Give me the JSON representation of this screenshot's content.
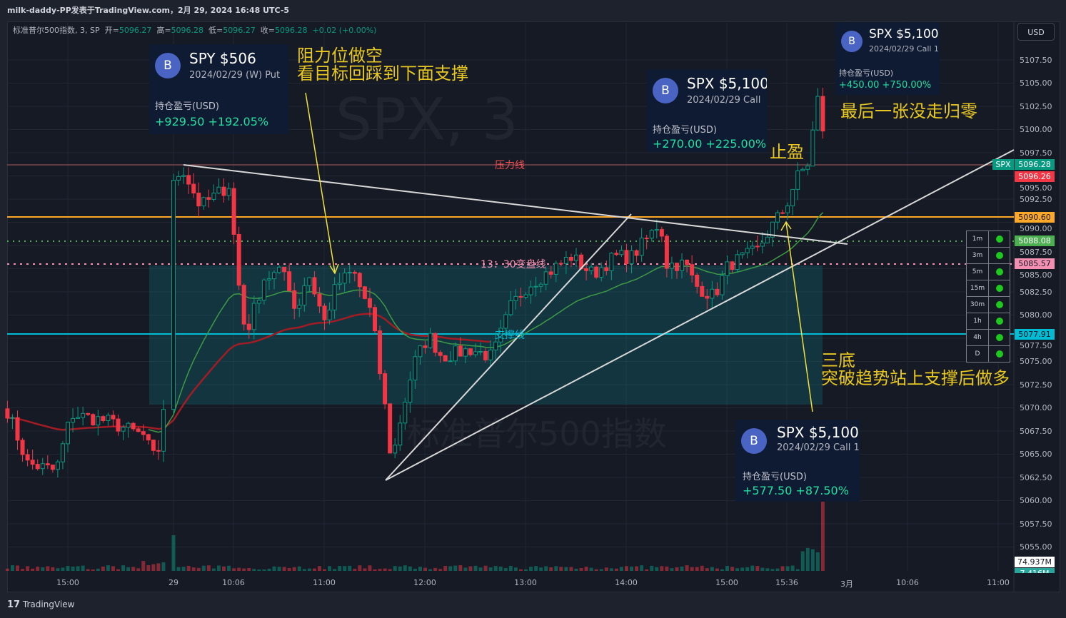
{
  "header": {
    "title": "milk-daddy-PP发表于TradingView.com，2月 29, 2024 16:48 UTC-5"
  },
  "legend": {
    "symbol": "标准普尔500指数, 3, SP",
    "open_label": "开=",
    "open": "5096.27",
    "high_label": "高=",
    "high": "5096.28",
    "low_label": "低=",
    "low": "5096.27",
    "close_label": "收=",
    "close": "5096.28",
    "change": "+0.02",
    "change_pct": "(+0.00%)"
  },
  "currency_button": "USD",
  "watermark": {
    "symbol": "SPX, 3",
    "name": "标准普尔500指数"
  },
  "cards": [
    {
      "badge": "B",
      "title": "SPY $506",
      "subtitle": "2024/02/29 (W) Put",
      "pnl_label": "持仓盈亏(USD)",
      "pnl": "+929.50 +192.05%"
    },
    {
      "badge": "B",
      "title": "SPX $5,100",
      "subtitle": "2024/02/29  Call",
      "pnl_label": "持仓盈亏(USD)",
      "pnl": "+270.00 +225.00%"
    },
    {
      "badge": "B",
      "title": "SPX $5,100",
      "subtitle": "2024/02/29  Call 1",
      "pnl_label": "持仓盈亏(USD)",
      "pnl": "+450.00 +750.00%"
    },
    {
      "badge": "B",
      "title": "SPX $5,100",
      "subtitle": "2024/02/29  Call 1",
      "pnl_label": "持仓盈亏(USD)",
      "pnl": "+577.50 +87.50%"
    }
  ],
  "notes": {
    "short_line1": "阻力位做空",
    "short_line2": "看目标回踩到下面支撑",
    "take_profit": "止盈",
    "last_one": "最后一张没走归零",
    "triple_line1": "三底",
    "triple_line2": "突破趋势站上支撑后做多",
    "resistance": "压力线",
    "pivot": "13：30变盘线",
    "support": "支撑线"
  },
  "price_axis": [
    "5107.50",
    "5105.00",
    "5102.50",
    "5100.00",
    "5097.50",
    "5095.00",
    "5092.50",
    "5090.00",
    "5087.50",
    "5085.00",
    "5082.50",
    "5080.00",
    "5077.50",
    "5075.00",
    "5072.50",
    "5070.00",
    "5067.50",
    "5065.00",
    "5062.50",
    "5060.00",
    "5057.50",
    "5055.00"
  ],
  "price_tags": [
    {
      "name": "symbol",
      "text": "SPX",
      "color": "#089981"
    },
    {
      "name": "last",
      "text": "5096.28",
      "color": "#089981"
    },
    {
      "name": "prev",
      "text": "5096.26",
      "color": "#f23645"
    },
    {
      "name": "orange",
      "text": "5090.60",
      "color": "#ffa726"
    },
    {
      "name": "green",
      "text": "5088.08",
      "color": "#4caf50"
    },
    {
      "name": "pink",
      "text": "5085.57",
      "color": "#f48fb1"
    },
    {
      "name": "cyan",
      "text": "5077.91",
      "color": "#00bcd4"
    }
  ],
  "volume_tags": [
    "74.937M",
    "7.416M"
  ],
  "time_axis": [
    "15:00",
    "29",
    "10:06",
    "11:00",
    "12:00",
    "13:00",
    "14:00",
    "15:00",
    "15:36",
    "3月",
    "10:06",
    "11:00"
  ],
  "mtf_table": [
    {
      "tf": "1m",
      "status": "green"
    },
    {
      "tf": "3m",
      "status": "green"
    },
    {
      "tf": "5m",
      "status": "green"
    },
    {
      "tf": "15m",
      "status": "green"
    },
    {
      "tf": "30m",
      "status": "green"
    },
    {
      "tf": "1h",
      "status": "green"
    },
    {
      "tf": "4h",
      "status": "green"
    },
    {
      "tf": "D",
      "status": "green"
    }
  ],
  "footer": {
    "brand": "TradingView"
  },
  "colors": {
    "up": "#089981",
    "down": "#f23645",
    "annotation": "#e8c820",
    "zone": "#0e7c86"
  },
  "chart_data": {
    "type": "candlestick",
    "interval": "3m",
    "horizontal_levels": [
      5096.28,
      5090.6,
      5088.08,
      5085.57,
      5077.91
    ],
    "ylim": [
      5053.5,
      5109
    ],
    "close_path": [
      [
        "02-28",
        "14:24",
        5069.7
      ],
      [
        "02-28",
        "14:36",
        5064.0
      ],
      [
        "02-28",
        "14:53",
        5063.2
      ],
      [
        "02-28",
        "15:02",
        5069.3
      ],
      [
        "02-28",
        "15:23",
        5068.6
      ],
      [
        "02-28",
        "15:45",
        5067.0
      ],
      [
        "02-28",
        "15:53",
        5064.0
      ],
      [
        "02-28",
        "15:57",
        5070.1
      ],
      [
        "02-29",
        "09:30",
        5094.0
      ],
      [
        "02-29",
        "09:35",
        5096.0
      ],
      [
        "02-29",
        "09:46",
        5091.7
      ],
      [
        "02-29",
        "10:03",
        5094.0
      ],
      [
        "02-29",
        "10:09",
        5083.2
      ],
      [
        "02-29",
        "10:13",
        5077.8
      ],
      [
        "02-29",
        "10:24",
        5084.0
      ],
      [
        "02-29",
        "10:37",
        5084.7
      ],
      [
        "02-29",
        "10:43",
        5080.1
      ],
      [
        "02-29",
        "10:50",
        5084.7
      ],
      [
        "02-29",
        "11:00",
        5079.3
      ],
      [
        "02-29",
        "11:07",
        5083.2
      ],
      [
        "02-29",
        "11:17",
        5084.7
      ],
      [
        "02-29",
        "11:28",
        5080.1
      ],
      [
        "02-29",
        "11:36",
        5070.1
      ],
      [
        "02-29",
        "11:40",
        5064.0
      ],
      [
        "02-29",
        "11:45",
        5068.6
      ],
      [
        "02-29",
        "11:53",
        5074.7
      ],
      [
        "02-29",
        "12:02",
        5077.8
      ],
      [
        "02-29",
        "12:10",
        5075.5
      ],
      [
        "02-29",
        "12:27",
        5076.3
      ],
      [
        "02-29",
        "12:40",
        5075.5
      ],
      [
        "02-29",
        "12:51",
        5080.9
      ],
      [
        "02-29",
        "13:01",
        5083.2
      ],
      [
        "02-29",
        "13:14",
        5084.7
      ],
      [
        "02-29",
        "13:27",
        5086.3
      ],
      [
        "02-29",
        "13:40",
        5084.4
      ],
      [
        "02-29",
        "13:53",
        5086.3
      ],
      [
        "02-29",
        "14:03",
        5086.3
      ],
      [
        "02-29",
        "14:14",
        5088.6
      ],
      [
        "02-29",
        "14:20",
        5090.1
      ],
      [
        "02-29",
        "14:24",
        5085.5
      ],
      [
        "02-29",
        "14:35",
        5085.5
      ],
      [
        "02-29",
        "14:41",
        5083.2
      ],
      [
        "02-29",
        "14:52",
        5082.0
      ],
      [
        "02-29",
        "15:01",
        5085.5
      ],
      [
        "02-29",
        "15:11",
        5086.3
      ],
      [
        "02-29",
        "15:18",
        5087.0
      ],
      [
        "02-29",
        "15:26",
        5089.4
      ],
      [
        "02-29",
        "15:35",
        5091.7
      ],
      [
        "02-29",
        "15:41",
        5094.7
      ],
      [
        "02-29",
        "15:48",
        5096.3
      ],
      [
        "02-29",
        "15:54",
        5103.2
      ],
      [
        "02-29",
        "15:57",
        5100.1
      ],
      [
        "02-29",
        "15:59",
        5096.28
      ]
    ]
  }
}
